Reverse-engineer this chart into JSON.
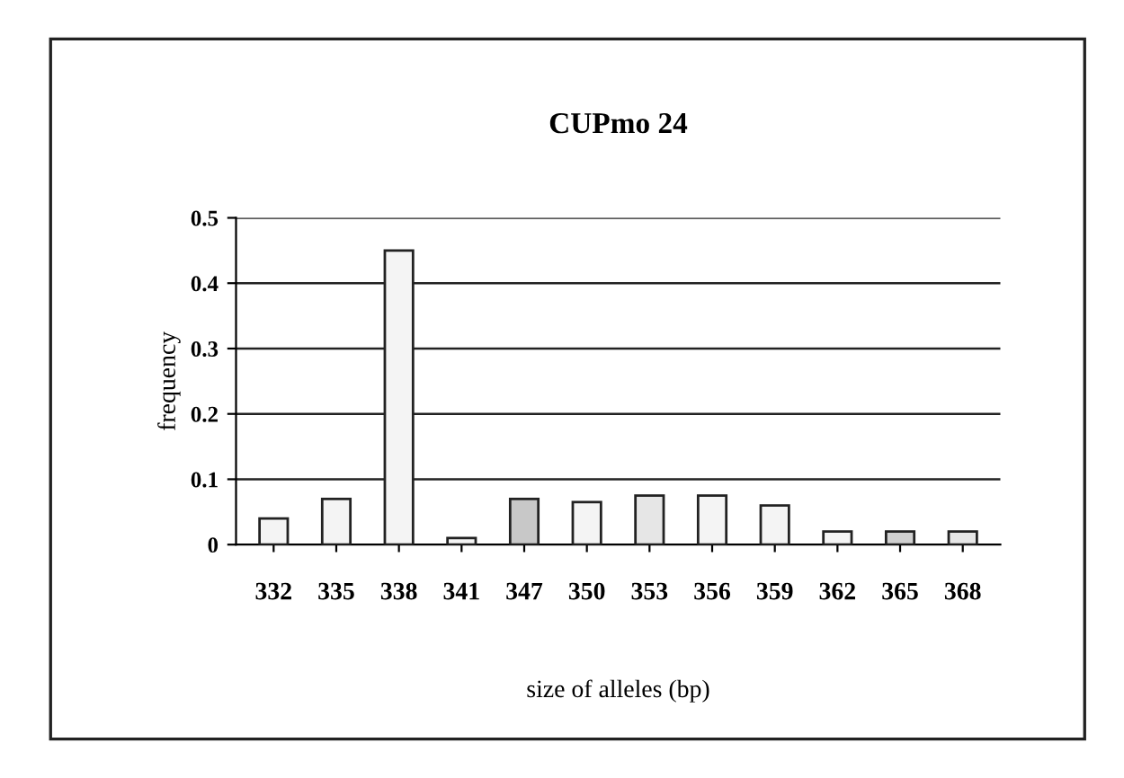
{
  "chart_data": {
    "type": "bar",
    "title": "CUPmo 24",
    "xlabel": "size of alleles (bp)",
    "ylabel": "frequency",
    "categories": [
      "332",
      "335",
      "338",
      "341",
      "347",
      "350",
      "353",
      "356",
      "359",
      "362",
      "365",
      "368"
    ],
    "values": [
      0.04,
      0.07,
      0.45,
      0.01,
      0.07,
      0.065,
      0.075,
      0.075,
      0.06,
      0.02,
      0.02,
      0.02
    ],
    "colors": [
      "#f4f4f4",
      "#f4f4f4",
      "#f4f4f4",
      "#f4f4f4",
      "#c8c8c8",
      "#f4f4f4",
      "#e6e6e6",
      "#f4f4f4",
      "#f4f4f4",
      "#f4f4f4",
      "#d0d0d0",
      "#e6e6e6"
    ],
    "ylim": [
      0,
      0.5
    ],
    "yticks": [
      0,
      0.1,
      0.2,
      0.3,
      0.4,
      0.5
    ],
    "grid": "y"
  }
}
